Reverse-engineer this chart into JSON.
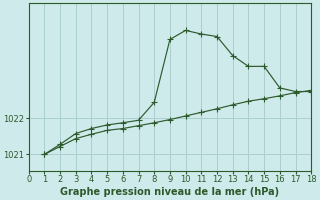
{
  "xlabel": "Graphe pression niveau de la mer (hPa)",
  "bg_color": "#ceeaea",
  "line_color": "#2d5a2d",
  "grid_color": "#aacece",
  "spine_color": "#2d5a2d",
  "x_min": 0,
  "x_max": 18,
  "y_min": 1020.55,
  "y_max": 1025.2,
  "yticks": [
    1021,
    1022
  ],
  "xticks": [
    0,
    1,
    2,
    3,
    4,
    5,
    6,
    7,
    8,
    9,
    10,
    11,
    12,
    13,
    14,
    15,
    16,
    17,
    18
  ],
  "series1_x": [
    1,
    2,
    3,
    4,
    5,
    6,
    7,
    8,
    9,
    10,
    11,
    12,
    13,
    14,
    15,
    16,
    17,
    18
  ],
  "series1_y": [
    1021.0,
    1021.22,
    1021.44,
    1021.56,
    1021.67,
    1021.72,
    1021.8,
    1021.88,
    1021.97,
    1022.07,
    1022.17,
    1022.27,
    1022.38,
    1022.48,
    1022.55,
    1022.63,
    1022.72,
    1022.78
  ],
  "series2_x": [
    1,
    2,
    3,
    4,
    5,
    6,
    7,
    8,
    9,
    10,
    11,
    12,
    13,
    14,
    15,
    16,
    17,
    18
  ],
  "series2_y": [
    1021.0,
    1021.28,
    1021.58,
    1021.72,
    1021.82,
    1021.88,
    1021.95,
    1022.45,
    1024.2,
    1024.45,
    1024.35,
    1024.28,
    1023.75,
    1023.45,
    1023.45,
    1022.85,
    1022.75,
    1022.75
  ],
  "tick_fontsize": 6,
  "xlabel_fontsize": 7,
  "marker": "+",
  "markersize": 4,
  "linewidth": 0.85
}
